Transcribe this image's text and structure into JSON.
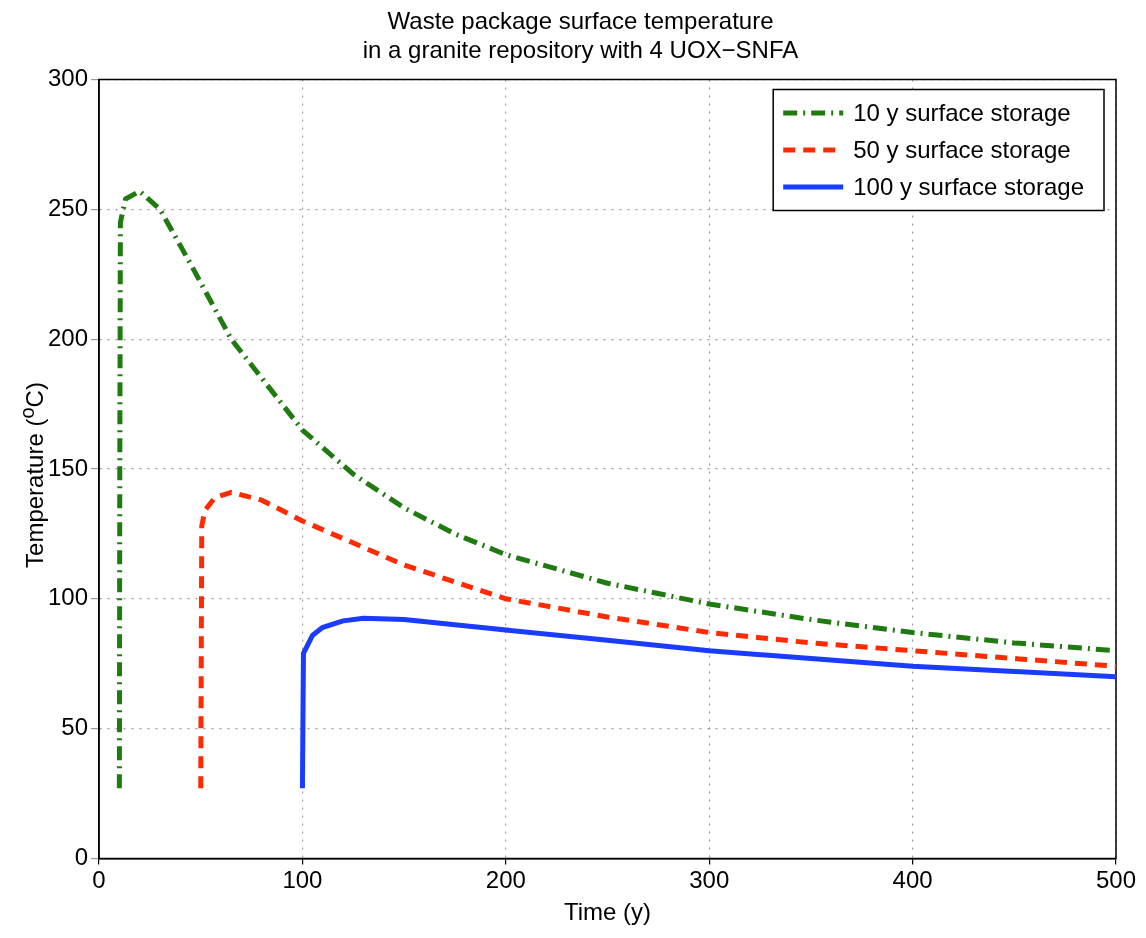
{
  "chart_data": {
    "type": "line",
    "title": "Waste package surface temperature\nin a granite repository with 4 UOX−SNFA",
    "xlabel": "Time (y)",
    "ylabel": "Temperature ($^{o}$C)",
    "xlim": [
      0,
      500
    ],
    "xticks": [
      0,
      100,
      200,
      300,
      400,
      500
    ],
    "ylim": [
      0,
      300
    ],
    "yticks": [
      0,
      50,
      100,
      150,
      200,
      250,
      300
    ],
    "grid": true,
    "legend": "top right",
    "marker": "none",
    "series": [
      {
        "name": "10 y surface storage",
        "color": "#1f7a0f",
        "line_style": "dashdot",
        "x": [
          10,
          10.2,
          10.5,
          13,
          20,
          30,
          45,
          65,
          80,
          100,
          125,
          150,
          175,
          200,
          250,
          300,
          350,
          400,
          450,
          500
        ],
        "values": [
          27,
          150,
          245,
          254,
          257,
          250,
          229,
          200,
          185,
          165,
          148,
          135,
          125,
          117,
          106,
          98,
          92,
          87,
          83,
          80
        ]
      },
      {
        "name": "50 y surface storage",
        "color": "#ff2a00",
        "line_style": "dashed",
        "x": [
          50,
          50.5,
          52,
          57,
          65,
          80,
          100,
          150,
          200,
          250,
          300,
          350,
          400,
          450,
          500
        ],
        "values": [
          27,
          128,
          134,
          139,
          141,
          138,
          130,
          113,
          100,
          93,
          87,
          83,
          80,
          77,
          74
        ]
      },
      {
        "name": "100 y surface storage",
        "color": "#1a3cff",
        "line_style": "solid",
        "x": [
          100,
          100.5,
          105,
          110,
          120,
          130,
          150,
          200,
          250,
          300,
          350,
          400,
          450,
          500
        ],
        "values": [
          27,
          79,
          86,
          89,
          91.5,
          92.5,
          92,
          88,
          84,
          80,
          77,
          74,
          72,
          70
        ]
      }
    ]
  }
}
